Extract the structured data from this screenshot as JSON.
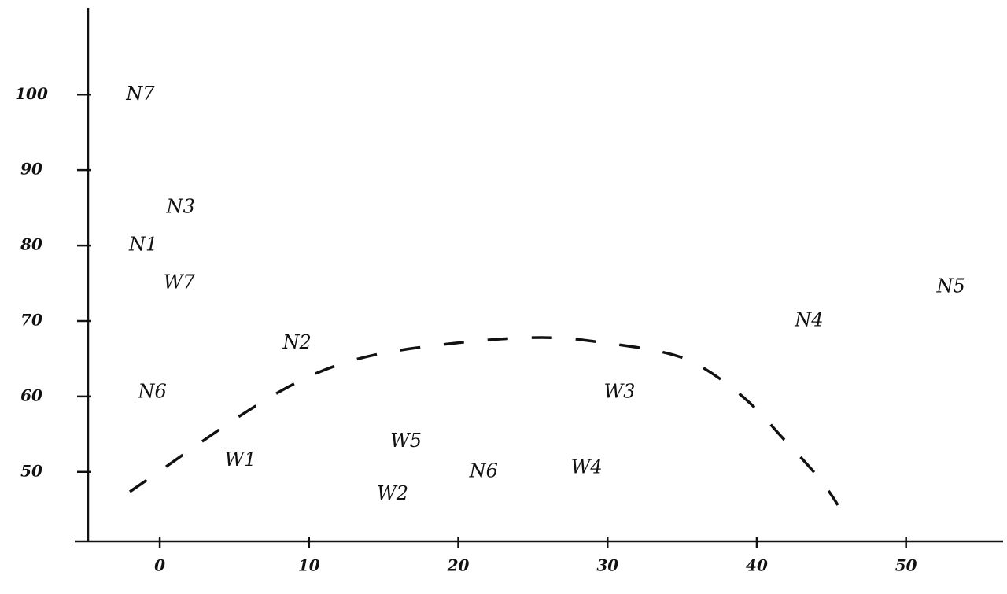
{
  "chart_data": {
    "type": "scatter",
    "labels": [
      "N7",
      "N3",
      "N1",
      "W7",
      "N2",
      "N6",
      "W1",
      "W5",
      "W2",
      "N6",
      "W4",
      "W3",
      "N4",
      "N5"
    ],
    "x": [
      -1.3,
      1.4,
      -1.1,
      1.3,
      9.2,
      -0.5,
      5.4,
      16.5,
      15.6,
      21.7,
      28.6,
      30.8,
      43.5,
      53
    ],
    "y": [
      100,
      85,
      80,
      75,
      67,
      60.5,
      51.5,
      54,
      47,
      50,
      50.5,
      60.5,
      70,
      74.5
    ],
    "xlim": [
      -4.8,
      56.5
    ],
    "ylim": [
      40.8,
      111.5
    ],
    "xticks": [
      0,
      10,
      20,
      30,
      40,
      50
    ],
    "yticks": [
      50,
      60,
      70,
      80,
      90,
      100
    ],
    "color": "#111111"
  }
}
